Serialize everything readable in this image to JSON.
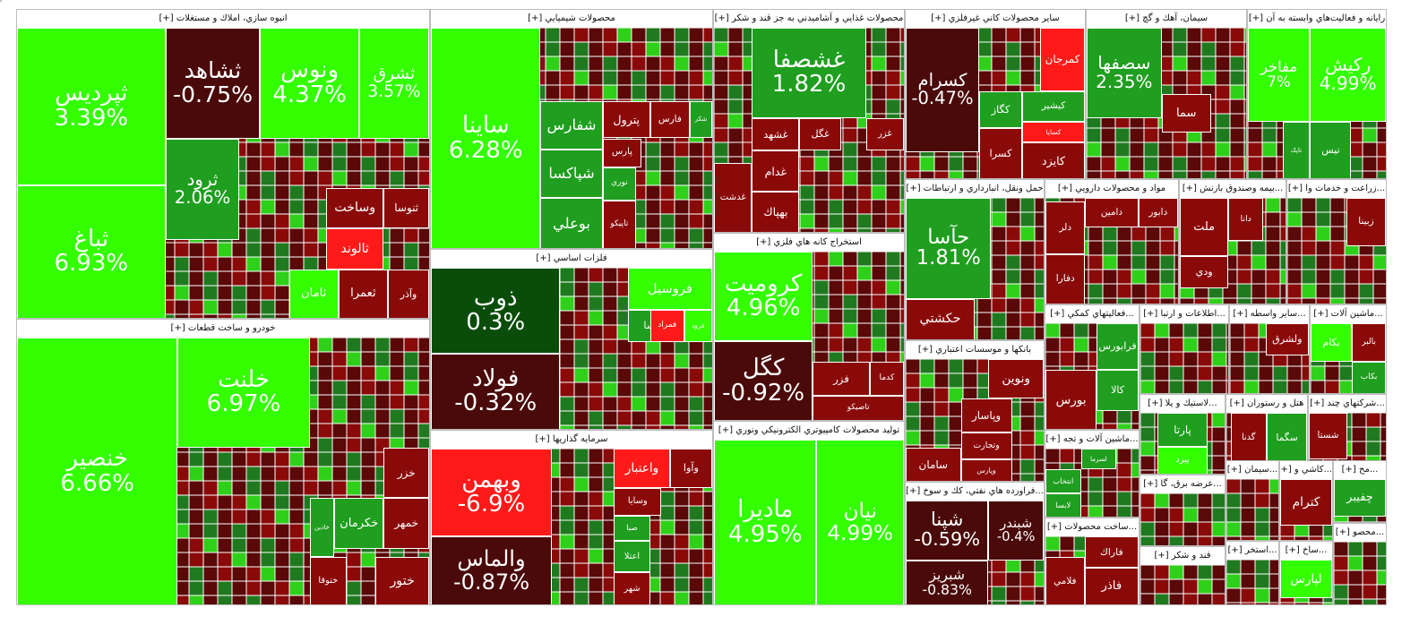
{
  "chart_data": {
    "type": "treemap",
    "title": "",
    "color_scale": {
      "gain_strong": "#33ff00",
      "gain": "#1f9e1f",
      "gain_weak": "#0a4d0a",
      "loss_weak": "#4a0a0a",
      "loss": "#8a0a0a",
      "loss_strong": "#ff1a1a"
    },
    "sectors": [
      {
        "title": "انبوه سازي، املاك و مستغلات [+]",
        "stocks": [
          {
            "symbol": "ثپرديس",
            "change": 3.39,
            "label": "3.39%"
          },
          {
            "symbol": "ثباغ",
            "change": 6.93,
            "label": "6.93%"
          },
          {
            "symbol": "ثشاهد",
            "change": -0.75,
            "label": "-0.75%"
          },
          {
            "symbol": "ونوس",
            "change": 4.37,
            "label": "4.37%"
          },
          {
            "symbol": "ثشرق",
            "change": 3.57,
            "label": "3.57%"
          },
          {
            "symbol": "ثرود",
            "change": 2.06,
            "label": "2.06%"
          },
          {
            "symbol": "ثنوسا",
            "change": -1,
            "label": ""
          },
          {
            "symbol": "وساخت",
            "change": -1,
            "label": ""
          },
          {
            "symbol": "ثالوند",
            "change": -3,
            "label": ""
          },
          {
            "symbol": "ثامان",
            "change": 3,
            "label": ""
          },
          {
            "symbol": "ثعمرا",
            "change": -1,
            "label": ""
          },
          {
            "symbol": "وآذر",
            "change": -1,
            "label": ""
          }
        ]
      },
      {
        "title": "خودرو و ساخت قطعات [+]",
        "stocks": [
          {
            "symbol": "خنصير",
            "change": 6.66,
            "label": "6.66%"
          },
          {
            "symbol": "خلنت",
            "change": 6.97,
            "label": "6.97%"
          },
          {
            "symbol": "خزر",
            "change": -2,
            "label": ""
          },
          {
            "symbol": "خمهر",
            "change": -1,
            "label": ""
          },
          {
            "symbol": "خكرمان",
            "change": 1,
            "label": ""
          },
          {
            "symbol": "خاذين",
            "change": 2,
            "label": ""
          },
          {
            "symbol": "ختوقا",
            "change": -1,
            "label": ""
          },
          {
            "symbol": "ختور",
            "change": -1,
            "label": ""
          }
        ]
      },
      {
        "title": "محصولات شيميايي [+]",
        "stocks": [
          {
            "symbol": "ساينا",
            "change": 6.28,
            "label": "6.28%"
          },
          {
            "symbol": "شفارس",
            "change": 1,
            "label": ""
          },
          {
            "symbol": "شپاكسا",
            "change": 1,
            "label": ""
          },
          {
            "symbol": "بوعلي",
            "change": 1,
            "label": ""
          },
          {
            "symbol": "پترول",
            "change": -1,
            "label": ""
          },
          {
            "symbol": "فارس",
            "change": -1,
            "label": ""
          },
          {
            "symbol": "شكر",
            "change": 1,
            "label": ""
          },
          {
            "symbol": "پارس",
            "change": -1,
            "label": ""
          },
          {
            "symbol": "نوري",
            "change": 1,
            "label": ""
          },
          {
            "symbol": "تاپيكو",
            "change": -1,
            "label": ""
          }
        ]
      },
      {
        "title": "فلزات اساسي [+]",
        "stocks": [
          {
            "symbol": "ذوب",
            "change": 0.3,
            "label": "0.3%"
          },
          {
            "symbol": "فولاد",
            "change": -0.32,
            "label": "-0.32%"
          },
          {
            "symbol": "فروسيل",
            "change": 3,
            "label": ""
          },
          {
            "symbol": "فرود",
            "change": 3,
            "label": ""
          },
          {
            "symbol": "فتوسا",
            "change": 1,
            "label": ""
          },
          {
            "symbol": "فمراد",
            "change": -3,
            "label": ""
          }
        ]
      },
      {
        "title": "سرمايه گذاريها [+]",
        "stocks": [
          {
            "symbol": "وبهمن",
            "change": -6.9,
            "label": "-6.9%"
          },
          {
            "symbol": "والماس",
            "change": -0.87,
            "label": "-0.87%"
          },
          {
            "symbol": "واعتبار",
            "change": -3,
            "label": ""
          },
          {
            "symbol": "وآوا",
            "change": -2,
            "label": ""
          },
          {
            "symbol": "وسايا",
            "change": -1,
            "label": ""
          },
          {
            "symbol": "صبا",
            "change": 1,
            "label": ""
          },
          {
            "symbol": "اعتلا",
            "change": 1,
            "label": ""
          },
          {
            "symbol": "شهر",
            "change": -1,
            "label": ""
          }
        ]
      },
      {
        "title": "محصولات غذايي و آشاميدني به جز قند و شكر [+]",
        "stocks": [
          {
            "symbol": "غشصفا",
            "change": 1.82,
            "label": "1.82%"
          },
          {
            "symbol": "غشهد",
            "change": -1,
            "label": ""
          },
          {
            "symbol": "غگل",
            "change": -2,
            "label": ""
          },
          {
            "symbol": "غزر",
            "change": -1,
            "label": ""
          },
          {
            "symbol": "غدام",
            "change": -1,
            "label": ""
          },
          {
            "symbol": "بهپاك",
            "change": -1,
            "label": ""
          },
          {
            "symbol": "غدشت",
            "change": -1,
            "label": ""
          }
        ]
      },
      {
        "title": "استخراج كانه هاي فلزي [+]",
        "stocks": [
          {
            "symbol": "كروميت",
            "change": 4.96,
            "label": "4.96%"
          },
          {
            "symbol": "كگل",
            "change": -0.92,
            "label": "-0.92%"
          },
          {
            "symbol": "فزر",
            "change": -1,
            "label": ""
          },
          {
            "symbol": "كدما",
            "change": -1,
            "label": ""
          },
          {
            "symbol": "تاصيكو",
            "change": -1,
            "label": ""
          }
        ]
      },
      {
        "title": "توليد محصولات كامپيوتري الكترونيكي ونوري [+]",
        "stocks": [
          {
            "symbol": "مادیرا",
            "change": 4.95,
            "label": "4.95%"
          },
          {
            "symbol": "نيان",
            "change": 4.99,
            "label": "4.99%"
          }
        ]
      },
      {
        "title": "ساير محصولات كاني غيرفلزي [+]",
        "stocks": [
          {
            "symbol": "كسرام",
            "change": -0.47,
            "label": "-0.47%"
          },
          {
            "symbol": "كمرجان",
            "change": -3,
            "label": ""
          },
          {
            "symbol": "كگاز",
            "change": 1,
            "label": ""
          },
          {
            "symbol": "كيشير",
            "change": 2,
            "label": ""
          },
          {
            "symbol": "كسايا",
            "change": -3,
            "label": ""
          },
          {
            "symbol": "كسرا",
            "change": -1,
            "label": ""
          },
          {
            "symbol": "كايزد",
            "change": -1,
            "label": ""
          }
        ]
      },
      {
        "title": "سيمان، آهك و گچ [+]",
        "stocks": [
          {
            "symbol": "سصفها",
            "change": 2.35,
            "label": "2.35%"
          },
          {
            "symbol": "سما",
            "change": -1,
            "label": ""
          }
        ]
      },
      {
        "title": "رايانه و فعاليت‌هاي وابسته به آن [+]",
        "stocks": [
          {
            "symbol": "مفاخر",
            "change": 7,
            "label": "7%"
          },
          {
            "symbol": "ركيش",
            "change": 4.99,
            "label": "4.99%"
          },
          {
            "symbol": "تاپك",
            "change": 1,
            "label": ""
          },
          {
            "symbol": "تيس",
            "change": 1,
            "label": ""
          }
        ]
      },
      {
        "title": "حمل ونقل، انبارداري و ارتباطات [+]",
        "stocks": [
          {
            "symbol": "حآسا",
            "change": 1.81,
            "label": "1.81%"
          },
          {
            "symbol": "حكشتي",
            "change": -1,
            "label": ""
          }
        ]
      },
      {
        "title": "مواد و محصولات دارويي [+]",
        "stocks": [
          {
            "symbol": "دامين",
            "change": -1,
            "label": ""
          },
          {
            "symbol": "دابور",
            "change": -1,
            "label": ""
          },
          {
            "symbol": "دلر",
            "change": -1,
            "label": ""
          },
          {
            "symbol": "دفارا",
            "change": -1,
            "label": ""
          }
        ]
      },
      {
        "title": "...بيمه وصندوق بازنش [+]",
        "stocks": [
          {
            "symbol": "ملت",
            "change": -1,
            "label": ""
          },
          {
            "symbol": "دانا",
            "change": -1,
            "label": ""
          },
          {
            "symbol": "ودي",
            "change": -1,
            "label": ""
          }
        ]
      },
      {
        "title": "...زراعت و خدمات وا [+]",
        "stocks": [
          {
            "symbol": "زبينا",
            "change": -1,
            "label": ""
          }
        ]
      },
      {
        "title": "بانكها و موسسات اعتباري [+]",
        "stocks": [
          {
            "symbol": "ونوين",
            "change": -1,
            "label": ""
          },
          {
            "symbol": "وپاسار",
            "change": -1,
            "label": ""
          },
          {
            "symbol": "وتجارت",
            "change": -1,
            "label": ""
          },
          {
            "symbol": "وپارس",
            "change": -1,
            "label": ""
          },
          {
            "symbol": "سامان",
            "change": -1,
            "label": ""
          }
        ]
      },
      {
        "title": "...فعاليتهاي كمكي [+]",
        "stocks": [
          {
            "symbol": "فرابورس",
            "change": 1,
            "label": ""
          },
          {
            "symbol": "كالا",
            "change": 1,
            "label": ""
          },
          {
            "symbol": "بورس",
            "change": -1,
            "label": ""
          }
        ]
      },
      {
        "title": "...اطلاعات و ارتبا [+]",
        "stocks": []
      },
      {
        "title": "...ساير واسطه [+]",
        "stocks": [
          {
            "symbol": "ولشرق",
            "change": -1,
            "label": ""
          }
        ]
      },
      {
        "title": "...ماشين آلات [+]",
        "stocks": [
          {
            "symbol": "بكام",
            "change": 3,
            "label": ""
          },
          {
            "symbol": "بالبر",
            "change": -1,
            "label": ""
          },
          {
            "symbol": "بكاب",
            "change": 1,
            "label": ""
          }
        ]
      },
      {
        "title": "...ماشين آلات و تجه [+]",
        "stocks": [
          {
            "symbol": "لسرما",
            "change": 1,
            "label": ""
          },
          {
            "symbol": "انتخاب",
            "change": 1,
            "label": ""
          },
          {
            "symbol": "لابسا",
            "change": 1,
            "label": ""
          }
        ]
      },
      {
        "title": "...لاستيك و پلا [+]",
        "stocks": [
          {
            "symbol": "پارتا",
            "change": 1,
            "label": ""
          },
          {
            "symbol": "پيزد",
            "change": 3,
            "label": ""
          }
        ]
      },
      {
        "title": "هتل و رستوران [+]",
        "stocks": [
          {
            "symbol": "سگما",
            "change": 1,
            "label": ""
          },
          {
            "symbol": "گدنا",
            "change": -1,
            "label": ""
          }
        ]
      },
      {
        "title": "...شركتهاي چند [+]",
        "stocks": [
          {
            "symbol": "شستا",
            "change": -1,
            "label": ""
          }
        ]
      },
      {
        "title": "...فراورده هاي نفتي، كك و سوخ [+]",
        "stocks": [
          {
            "symbol": "شپنا",
            "change": -0.59,
            "label": "-0.59%"
          },
          {
            "symbol": "شبندر",
            "change": -0.4,
            "label": "-0.4%"
          },
          {
            "symbol": "شبريز",
            "change": -0.83,
            "label": "-0.83%"
          }
        ]
      },
      {
        "title": "...ساخت محصولات [+]",
        "stocks": [
          {
            "symbol": "فاراك",
            "change": -1,
            "label": ""
          },
          {
            "symbol": "فلامي",
            "change": -1,
            "label": ""
          },
          {
            "symbol": "فاذر",
            "change": -1,
            "label": ""
          }
        ]
      },
      {
        "title": "...عرضه برق، گا [+]",
        "stocks": []
      },
      {
        "title": "قند و شكر [+]",
        "stocks": []
      },
      {
        "title": "...سيمان [+]",
        "stocks": []
      },
      {
        "title": "...كاشي و [+]",
        "stocks": [
          {
            "symbol": "كترام",
            "change": -1,
            "label": ""
          }
        ]
      },
      {
        "title": "...مح [+]",
        "stocks": [
          {
            "symbol": "چفيبر",
            "change": 1,
            "label": ""
          }
        ]
      },
      {
        "title": "...ساخ [+]",
        "stocks": [
          {
            "symbol": "لپارس",
            "change": 3,
            "label": ""
          }
        ]
      },
      {
        "title": "...استخر [+]",
        "stocks": []
      },
      {
        "title": "...محصو [+]",
        "stocks": []
      },
      {
        "title": "[+]",
        "stocks": []
      }
    ]
  }
}
